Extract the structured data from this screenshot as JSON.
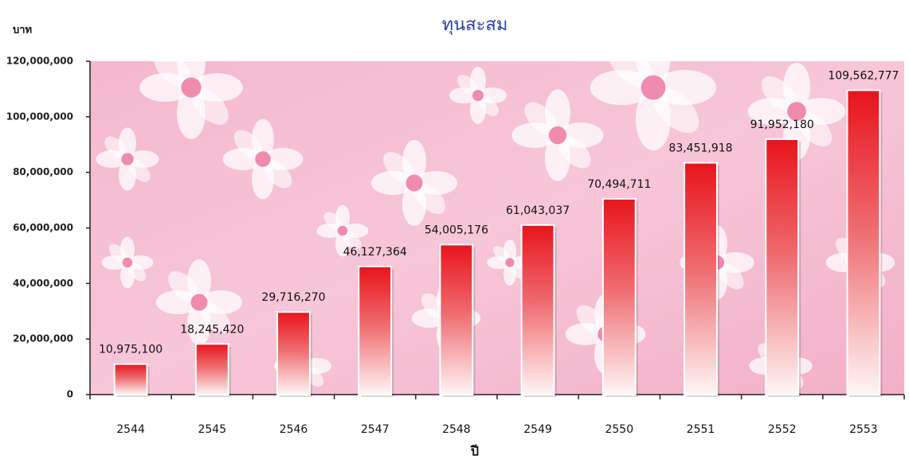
{
  "chart_data": {
    "type": "bar",
    "title": "ทุนสะสม",
    "y_label": "บาท",
    "x_label": "ปี",
    "categories": [
      "2544",
      "2545",
      "2546",
      "2547",
      "2548",
      "2549",
      "2550",
      "2551",
      "2552",
      "2553"
    ],
    "values": [
      10975100,
      18245420,
      29716270,
      46127364,
      54005176,
      61043037,
      70494711,
      83451918,
      91952180,
      109562777
    ],
    "value_labels": [
      "10,975,100",
      "18,245,420",
      "29,716,270",
      "46,127,364",
      "54,005,176",
      "61,043,037",
      "70,494,711",
      "83,451,918",
      "91,952,180",
      "109,562,777"
    ],
    "color": "#e8141c",
    "ylim": [
      0,
      120000000
    ],
    "yticks": [
      0,
      {
        "value": 20000000,
        "label": "20,000,000"
      },
      {
        "value": 40000000,
        "label": "40,000,000"
      },
      {
        "value": 60000000,
        "label": "60,000,000"
      },
      {
        "value": 80000000,
        "label": "80,000,000"
      },
      {
        "value": 100000000,
        "label": "100,000,000"
      },
      {
        "value": 120000000,
        "label": "120,000,000"
      }
    ],
    "grid": false
  }
}
